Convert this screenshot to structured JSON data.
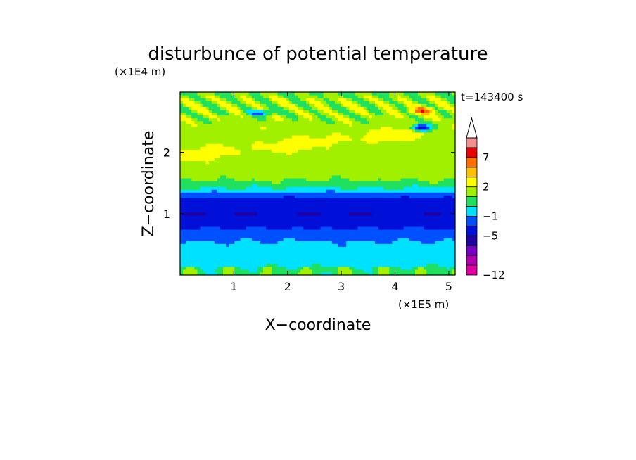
{
  "chart_data": {
    "type": "heatmap",
    "title": "disturbunce of potential temperature",
    "xlabel": "X−coordinate",
    "ylabel": "Z−coordinate",
    "x_unit": "(×1E5 m)",
    "y_unit": "(×1E4 m)",
    "time_label": "t=143400 s",
    "xlim": [
      0,
      5.12
    ],
    "ylim": [
      0,
      2.98
    ],
    "x_ticks": [
      1,
      2,
      3,
      4,
      5
    ],
    "y_ticks": [
      1,
      2
    ],
    "colorbar": {
      "levels": [
        -12,
        -10,
        -8,
        -6,
        -5,
        -3,
        -1,
        0,
        1,
        2,
        4,
        5,
        7,
        9,
        11
      ],
      "tick_labels": [
        {
          "value": -12,
          "label": "−12"
        },
        {
          "value": -5,
          "label": "−5"
        },
        {
          "value": -1,
          "label": "−1"
        },
        {
          "value": 2,
          "label": "2"
        },
        {
          "value": 7,
          "label": "7"
        }
      ],
      "colors": [
        "#e000a0",
        "#b000b0",
        "#7800c0",
        "#2000a0",
        "#0010d8",
        "#0050ff",
        "#00e0ff",
        "#20e060",
        "#a0f000",
        "#ffff00",
        "#ffc000",
        "#ff7000",
        "#e80000",
        "#f09090"
      ],
      "extend": "max"
    },
    "fields": {
      "note_source": "",
      "layers": [
        {
          "z": [
            0.0,
            0.12
          ],
          "value": 0.5
        },
        {
          "z": [
            0.12,
            0.55
          ],
          "value": -0.5
        },
        {
          "z": [
            0.55,
            0.75
          ],
          "value": -1.5
        },
        {
          "z": [
            0.75,
            1.3
          ],
          "value": -4.0
        },
        {
          "z": [
            1.3,
            1.42
          ],
          "value": -0.5
        },
        {
          "z": [
            1.42,
            1.55
          ],
          "value": 0.5
        },
        {
          "z": [
            1.55,
            2.98
          ],
          "value": 1.5
        }
      ]
    }
  }
}
